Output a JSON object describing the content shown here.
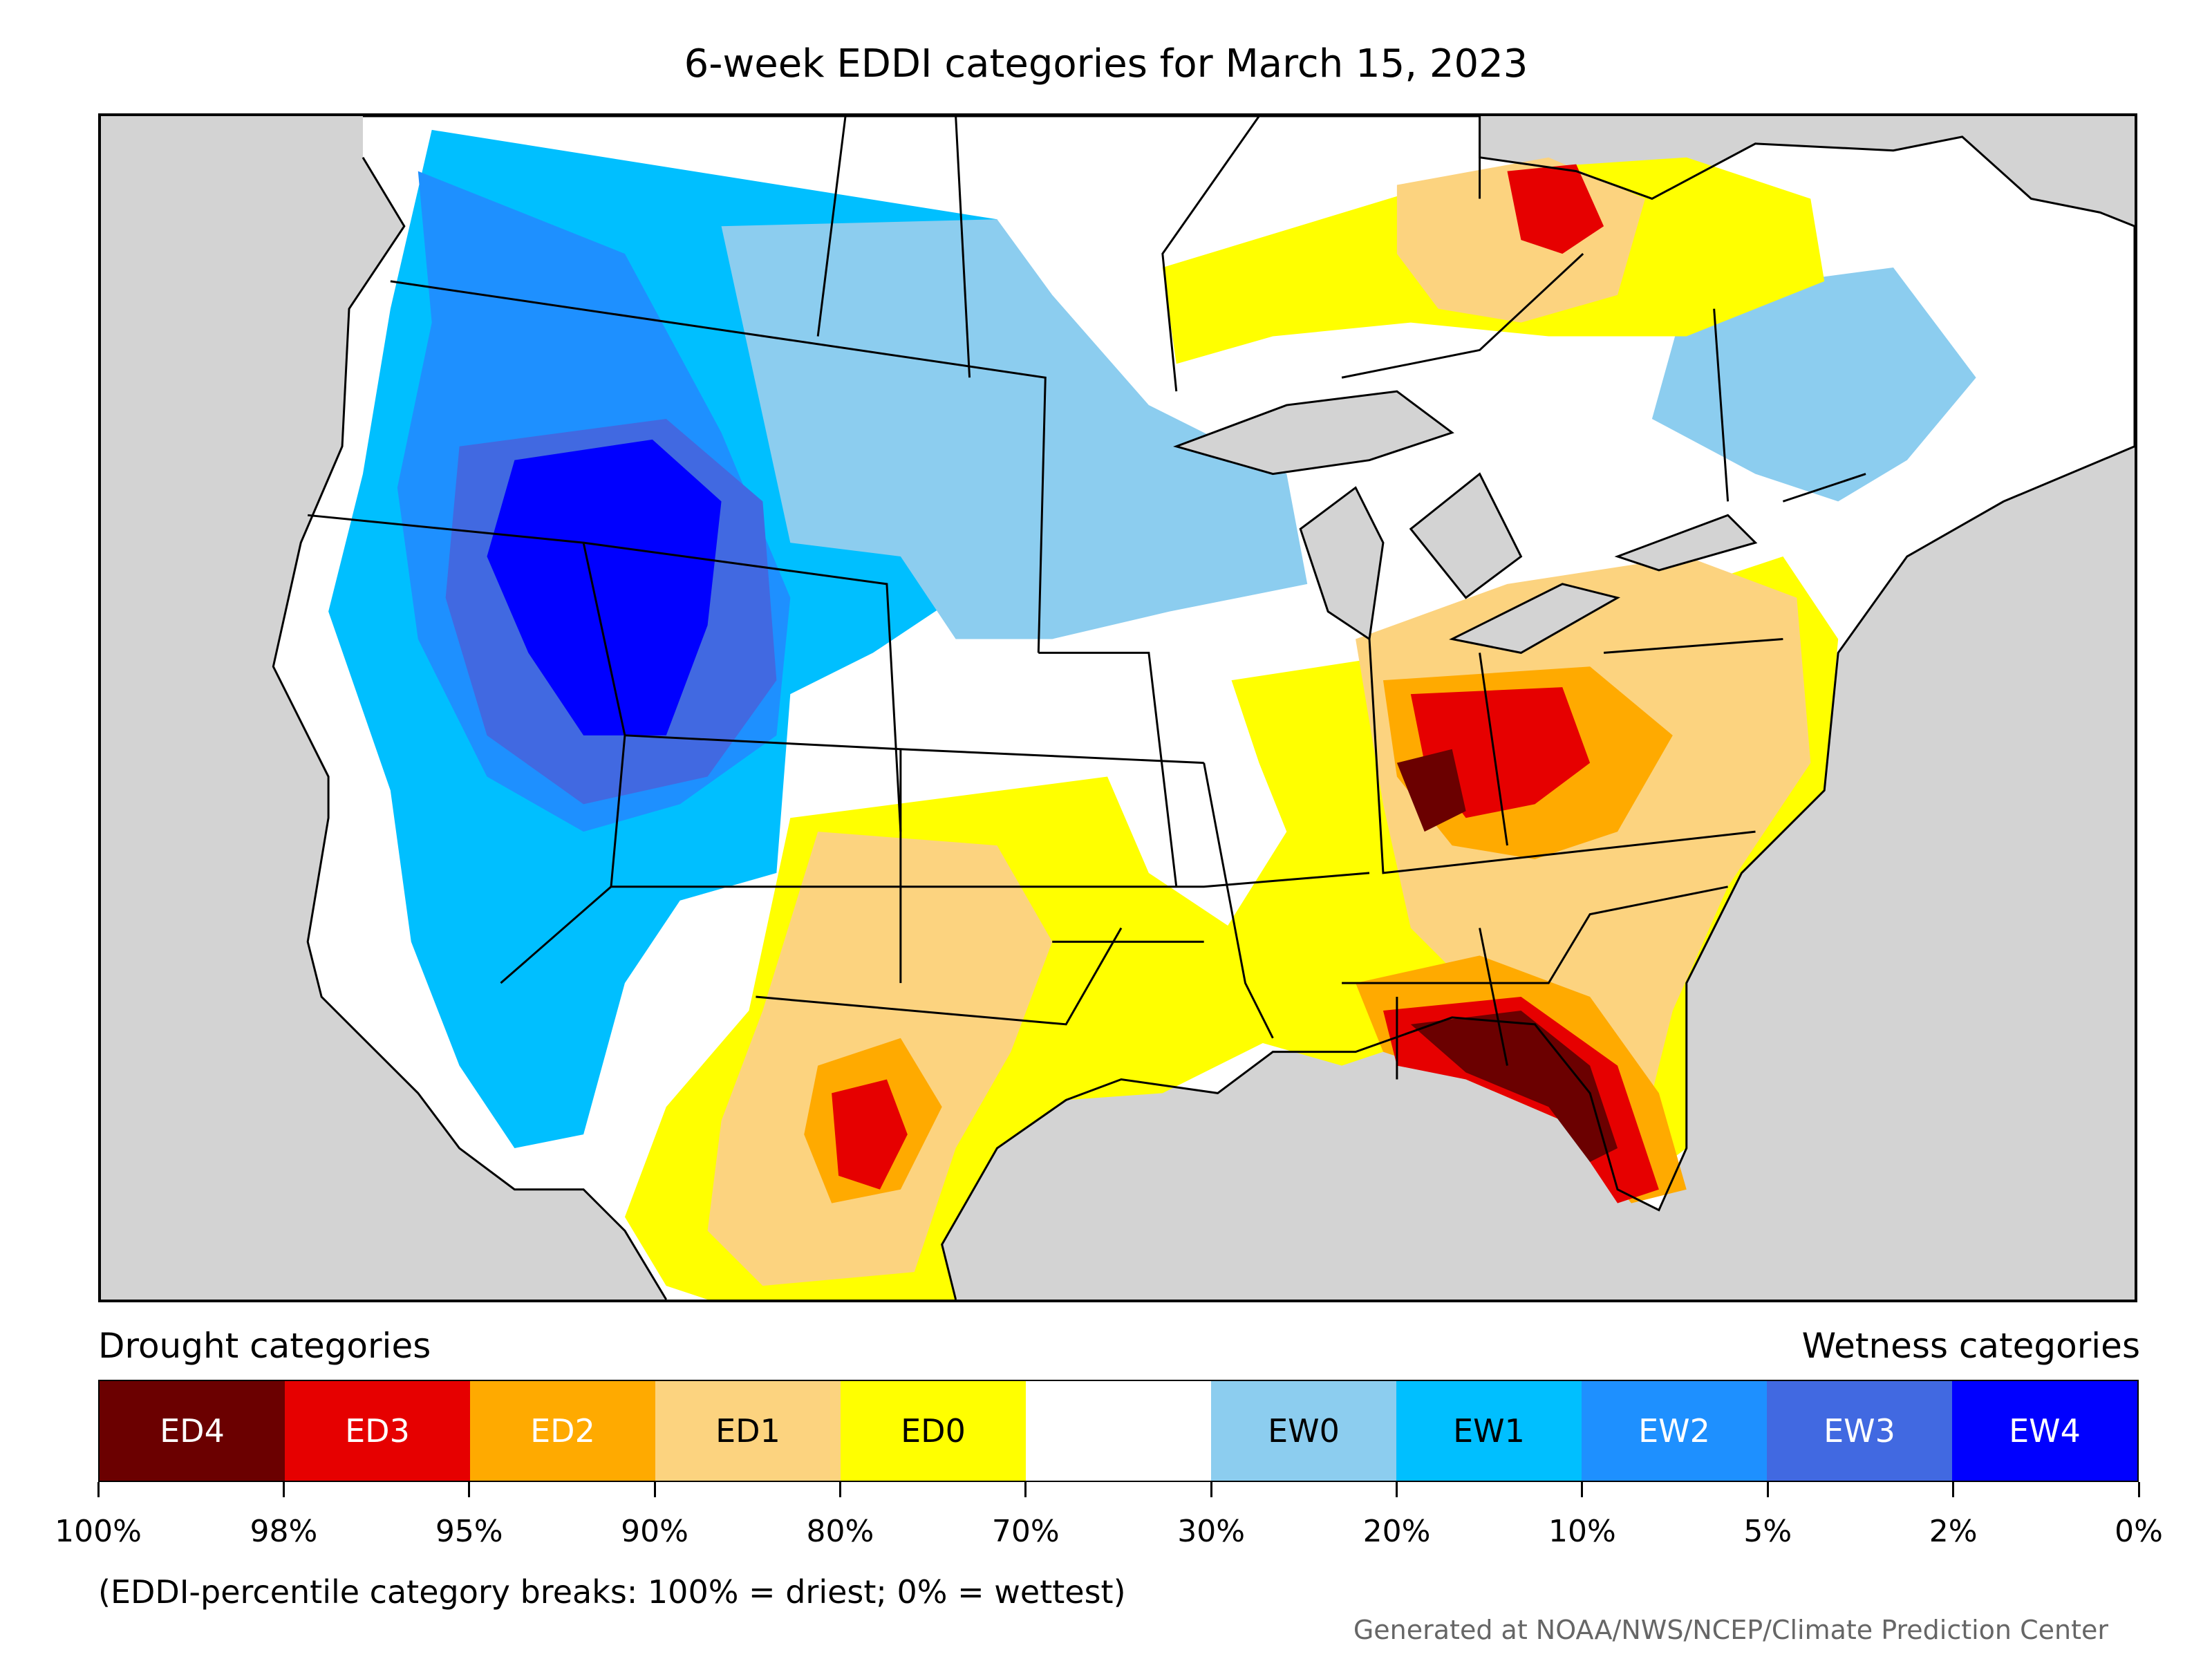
{
  "title": "6-week EDDI categories for March 15, 2023",
  "legend": {
    "drought_caption": "Drought categories",
    "wetness_caption": "Wetness categories",
    "categories": [
      {
        "label": "ED4",
        "color": "#6b0000",
        "text_color": "#ffffff"
      },
      {
        "label": "ED3",
        "color": "#e60000",
        "text_color": "#ffffff"
      },
      {
        "label": "ED2",
        "color": "#ffaa00",
        "text_color": "#ffffff"
      },
      {
        "label": "ED1",
        "color": "#fcd37f",
        "text_color": "#000000"
      },
      {
        "label": "ED0",
        "color": "#ffff00",
        "text_color": "#000000"
      },
      {
        "label": "",
        "color": "#ffffff",
        "text_color": "#000000"
      },
      {
        "label": "EW0",
        "color": "#8ccdef",
        "text_color": "#000000"
      },
      {
        "label": "EW1",
        "color": "#00bfff",
        "text_color": "#000000"
      },
      {
        "label": "EW2",
        "color": "#1e90ff",
        "text_color": "#ffffff"
      },
      {
        "label": "EW3",
        "color": "#4169e1",
        "text_color": "#ffffff"
      },
      {
        "label": "EW4",
        "color": "#0000ff",
        "text_color": "#ffffff"
      }
    ],
    "breaks": [
      "100%",
      "98%",
      "95%",
      "90%",
      "80%",
      "70%",
      "30%",
      "20%",
      "10%",
      "5%",
      "2%",
      "0%"
    ]
  },
  "note": "(EDDI-percentile category breaks: 100% = driest; 0% = wettest)",
  "credit": "Generated at NOAA/NWS/NCEP/Climate Prediction Center"
}
